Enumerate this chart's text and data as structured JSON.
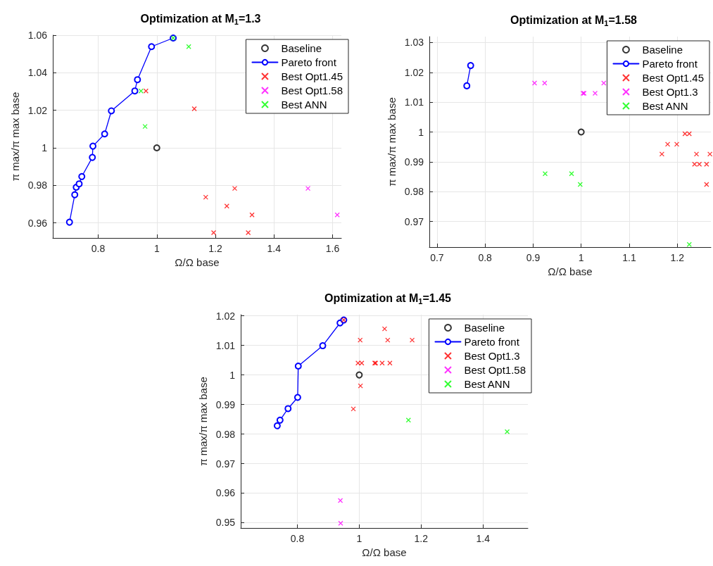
{
  "chart_data": [
    {
      "type": "scatter",
      "title": "Optimization at M$_{1}$=1.3",
      "xlabel": "Ω/Ω base",
      "ylabel": "π max/π max base",
      "xlim": [
        0.645,
        1.63
      ],
      "ylim": [
        0.952,
        1.06
      ],
      "xticks": [
        0.8,
        1,
        1.2,
        1.4,
        1.6
      ],
      "yticks": [
        0.96,
        0.98,
        1,
        1.02,
        1.04,
        1.06
      ],
      "grid": true,
      "legend": "top right",
      "series": [
        {
          "name": "Baseline",
          "type": "scatter",
          "marker": "circle",
          "color": "#000000",
          "x": [
            1
          ],
          "values": [
            1
          ]
        },
        {
          "name": "Pareto front",
          "type": "line",
          "marker": "circle",
          "color": "#0000ff",
          "x": [
            0.702,
            0.72,
            0.725,
            0.735,
            0.744,
            0.78,
            0.782,
            0.822,
            0.845,
            0.925,
            0.934,
            0.982,
            1.056
          ],
          "values": [
            0.9604,
            0.975,
            0.979,
            0.9808,
            0.9847,
            0.9949,
            1.0009,
            1.0074,
            1.0197,
            1.0303,
            1.0363,
            1.0539,
            1.0585
          ]
        },
        {
          "name": "Best Opt1.45",
          "type": "scatter",
          "marker": "cross",
          "color": "#ff0000",
          "x": [
            0.963,
            1.128,
            1.167,
            1.266,
            1.239,
            1.325,
            1.194,
            1.312
          ],
          "values": [
            1.0303,
            1.0208,
            0.9737,
            0.9784,
            0.969,
            0.9643,
            0.9548,
            0.9548
          ]
        },
        {
          "name": "Best Opt1.58",
          "type": "scatter",
          "marker": "cross",
          "color": "#ff00ff",
          "x": [
            1.516,
            1.616
          ],
          "values": [
            0.9784,
            0.9643
          ]
        },
        {
          "name": "Best ANN",
          "type": "scatter",
          "marker": "cross",
          "color": "#00ff00",
          "x": [
            0.946,
            0.96,
            1.109,
            1.056
          ],
          "values": [
            1.0303,
            1.0114,
            1.0539,
            1.0585
          ]
        }
      ]
    },
    {
      "type": "scatter",
      "title": "Optimization at M$_{1}$=1.58",
      "xlabel": "Ω/Ω base",
      "ylabel": "π max/π max base",
      "xlim": [
        0.684,
        1.27
      ],
      "ylim": [
        0.9614,
        1.032
      ],
      "xticks": [
        0.7,
        0.8,
        0.9,
        1,
        1.1,
        1.2
      ],
      "yticks": [
        0.97,
        0.98,
        0.99,
        1,
        1.01,
        1.02,
        1.03
      ],
      "grid": true,
      "legend": "top right",
      "series": [
        {
          "name": "Baseline",
          "type": "scatter",
          "marker": "circle",
          "color": "#000000",
          "x": [
            1
          ],
          "values": [
            1
          ]
        },
        {
          "name": "Pareto front",
          "type": "line",
          "marker": "circle",
          "color": "#0000ff",
          "x": [
            0.762,
            0.77
          ],
          "values": [
            1.0155,
            1.0223
          ]
        },
        {
          "name": "Best Opt1.45",
          "type": "scatter",
          "marker": "cross",
          "color": "#ff0000",
          "x": [
            1.216,
            1.225,
            1.18,
            1.199,
            1.168,
            1.24,
            1.268,
            1.236,
            1.246,
            1.261,
            1.261
          ],
          "values": [
            0.9994,
            0.9994,
            0.9959,
            0.9959,
            0.9926,
            0.9926,
            0.9926,
            0.9892,
            0.9892,
            0.9892,
            0.9824
          ]
        },
        {
          "name": "Best Opt1.3",
          "type": "scatter",
          "marker": "cross",
          "color": "#ff00ff",
          "x": [
            0.903,
            0.924,
            1.004,
            1.006,
            1.029,
            1.047
          ],
          "values": [
            1.0164,
            1.0164,
            1.013,
            1.013,
            1.013,
            1.0164
          ]
        },
        {
          "name": "Best ANN",
          "type": "scatter",
          "marker": "cross",
          "color": "#00ff00",
          "x": [
            0.925,
            0.98,
            0.998,
            1.225
          ],
          "values": [
            0.986,
            0.986,
            0.9824,
            0.9623
          ]
        }
      ]
    },
    {
      "type": "scatter",
      "title": "Optimization at M$_{1}$=1.45",
      "xlabel": "Ω/Ω base",
      "ylabel": "π max/π max base",
      "xlim": [
        0.617,
        1.545
      ],
      "ylim": [
        0.9482,
        1.0204
      ],
      "xticks": [
        0.8,
        1,
        1.2,
        1.4
      ],
      "yticks": [
        0.95,
        0.96,
        0.97,
        0.98,
        0.99,
        1,
        1.01,
        1.02
      ],
      "grid": true,
      "legend": "top right",
      "series": [
        {
          "name": "Baseline",
          "type": "scatter",
          "marker": "circle",
          "color": "#000000",
          "x": [
            1
          ],
          "values": [
            1
          ]
        },
        {
          "name": "Pareto front",
          "type": "line",
          "marker": "circle",
          "color": "#0000ff",
          "x": [
            0.735,
            0.744,
            0.77,
            0.801,
            0.803,
            0.882,
            0.938,
            0.95
          ],
          "values": [
            0.9828,
            0.9847,
            0.9886,
            0.9924,
            1.003,
            1.0099,
            1.0176,
            1.0186
          ]
        },
        {
          "name": "Best Opt1.3",
          "type": "scatter",
          "marker": "cross",
          "color": "#ff0000",
          "x": [
            0.95,
            1.082,
            1.003,
            1.092,
            1.171,
            0.996,
            1.008,
            1.05,
            1.053,
            1.074,
            1.099,
            1.004,
            0.981
          ],
          "values": [
            1.0186,
            1.0156,
            1.0118,
            1.0118,
            1.0118,
            1.004,
            1.004,
            1.004,
            1.004,
            1.004,
            1.004,
            0.9963,
            0.9885
          ]
        },
        {
          "name": "Best Opt1.58",
          "type": "scatter",
          "marker": "cross",
          "color": "#ff00ff",
          "x": [
            0.939,
            0.94
          ],
          "values": [
            0.9575,
            0.9498
          ]
        },
        {
          "name": "Best ANN",
          "type": "scatter",
          "marker": "cross",
          "color": "#00ff00",
          "x": [
            1.159,
            1.478
          ],
          "values": [
            0.9847,
            0.9808
          ]
        }
      ]
    }
  ]
}
